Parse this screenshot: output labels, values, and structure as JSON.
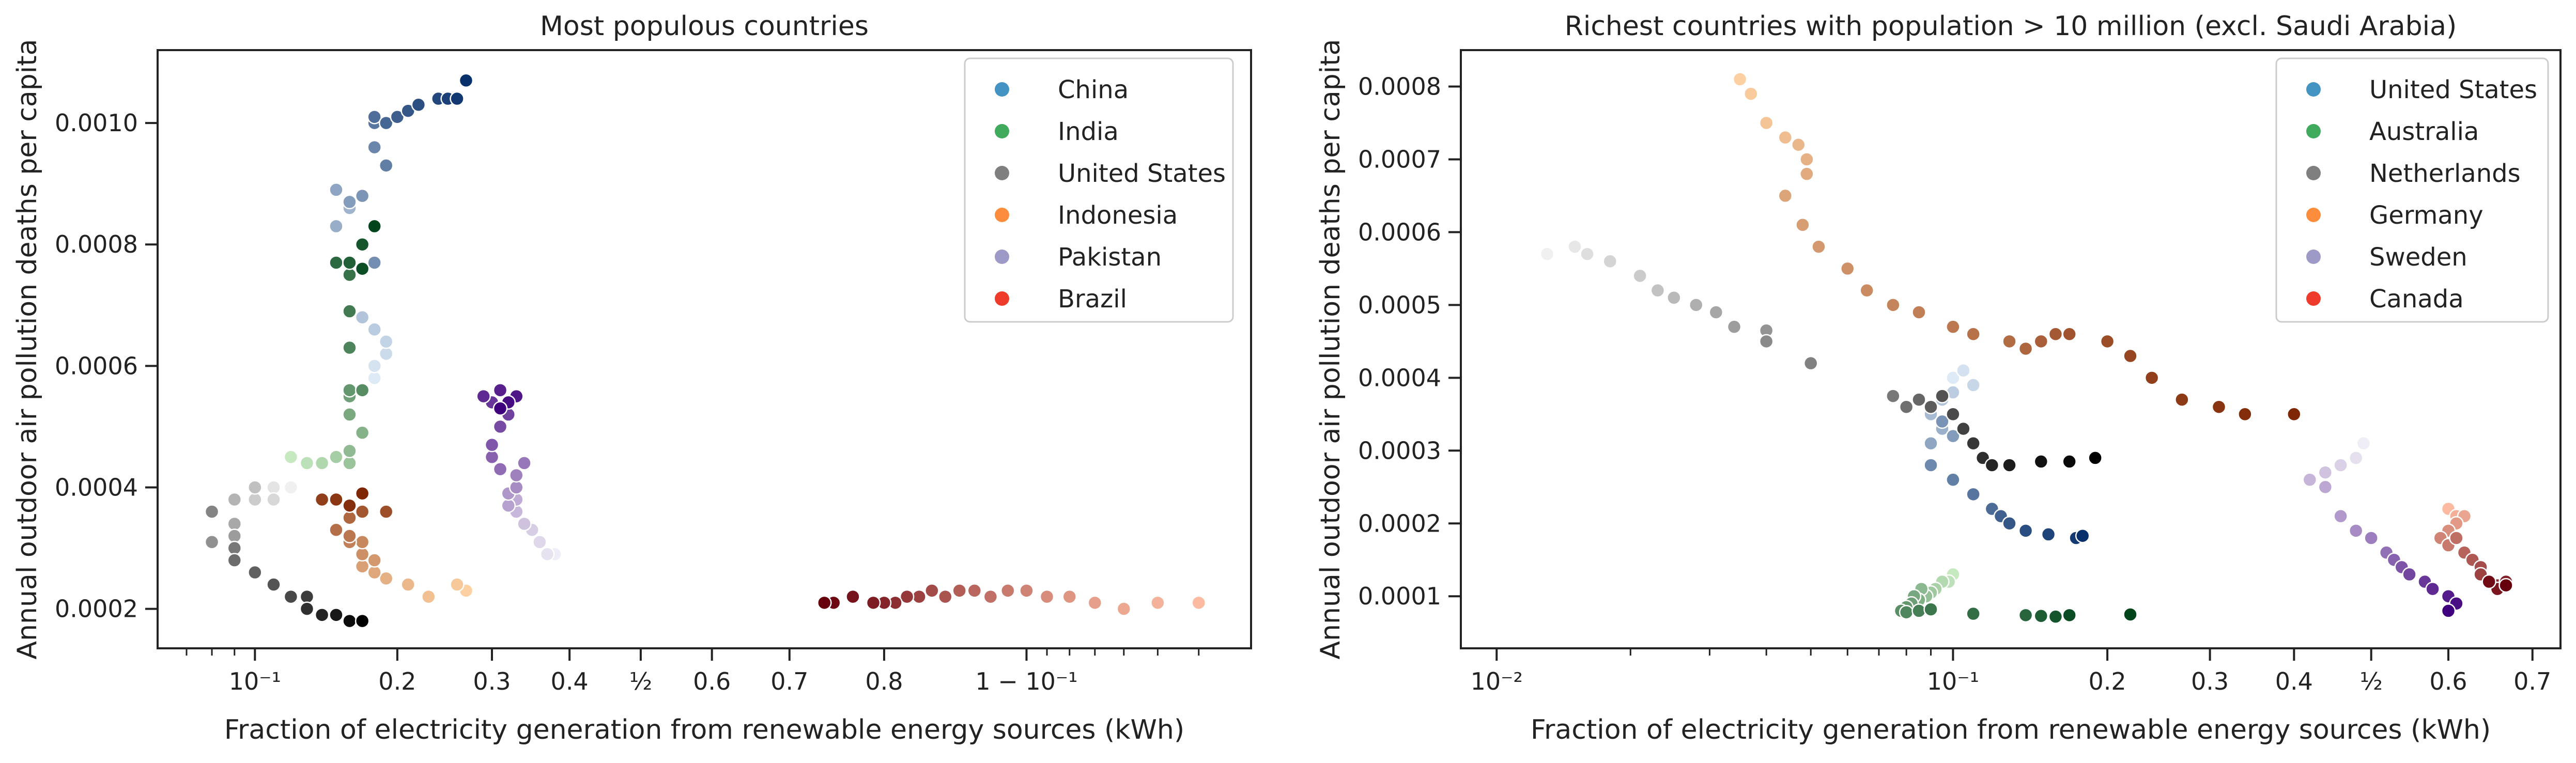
{
  "chart_data": [
    {
      "type": "scatter",
      "title": "Most populous countries",
      "xlabel": "Fraction of electricity generation from renewable energy sources (kWh)",
      "ylabel": "Annual outdoor air pollution deaths per capita",
      "x_scale": "logit",
      "xlim": [
        0.06,
        0.97
      ],
      "ylim": [
        0.000135,
        0.00112
      ],
      "xticks": [
        {
          "value": 0.1,
          "label": "10⁻¹"
        },
        {
          "value": 0.2,
          "label": "0.2"
        },
        {
          "value": 0.3,
          "label": "0.3"
        },
        {
          "value": 0.4,
          "label": "0.4"
        },
        {
          "value": 0.5,
          "label": "½"
        },
        {
          "value": 0.6,
          "label": "0.6"
        },
        {
          "value": 0.7,
          "label": "0.7"
        },
        {
          "value": 0.8,
          "label": "0.8"
        },
        {
          "value": 0.9,
          "label": "1 − 10⁻¹"
        }
      ],
      "yticks": [
        {
          "value": 0.0002,
          "label": "0.0002"
        },
        {
          "value": 0.0004,
          "label": "0.0004"
        },
        {
          "value": 0.0006,
          "label": "0.0006"
        },
        {
          "value": 0.0008,
          "label": "0.0008"
        },
        {
          "value": 0.001,
          "label": "0.0010"
        }
      ],
      "legend_position": "top-right",
      "grid": false,
      "series": [
        {
          "name": "China",
          "color": "#4393c3",
          "colors": [
            "#deebf7",
            "#08306b"
          ],
          "x": [
            0.18,
            0.18,
            0.19,
            0.19,
            0.18,
            0.17,
            0.17,
            0.16,
            0.15,
            0.15,
            0.16,
            0.17,
            0.18,
            0.18,
            0.19,
            0.18,
            0.18,
            0.19,
            0.2,
            0.21,
            0.22,
            0.24,
            0.25,
            0.26,
            0.27
          ],
          "y": [
            0.00058,
            0.0006,
            0.00062,
            0.00064,
            0.00066,
            0.00068,
            0.0008,
            0.00086,
            0.00083,
            0.00089,
            0.00087,
            0.00088,
            0.00077,
            0.00096,
            0.00093,
            0.001,
            0.00101,
            0.001,
            0.00101,
            0.00102,
            0.00103,
            0.00104,
            0.00104,
            0.00104,
            0.00107
          ]
        },
        {
          "name": "India",
          "color": "#41ab5d",
          "colors": [
            "#c7e9c0",
            "#00441b"
          ],
          "x": [
            0.12,
            0.13,
            0.14,
            0.15,
            0.16,
            0.16,
            0.17,
            0.16,
            0.16,
            0.16,
            0.17,
            0.16,
            0.16,
            0.16,
            0.15,
            0.16,
            0.17,
            0.17,
            0.18
          ],
          "y": [
            0.00045,
            0.00044,
            0.00044,
            0.00045,
            0.00044,
            0.00046,
            0.00049,
            0.00052,
            0.00055,
            0.00056,
            0.00056,
            0.00063,
            0.00069,
            0.00075,
            0.00077,
            0.00077,
            0.0008,
            0.00076,
            0.00083
          ]
        },
        {
          "name": "United States",
          "color": "#7f7f7f",
          "colors": [
            "#f0f0f0",
            "#000000"
          ],
          "x": [
            0.12,
            0.11,
            0.11,
            0.1,
            0.1,
            0.09,
            0.09,
            0.09,
            0.08,
            0.08,
            0.09,
            0.09,
            0.1,
            0.11,
            0.12,
            0.13,
            0.13,
            0.14,
            0.15,
            0.16,
            0.17
          ],
          "y": [
            0.0004,
            0.0004,
            0.00038,
            0.00038,
            0.0004,
            0.00038,
            0.00034,
            0.00032,
            0.00031,
            0.00036,
            0.0003,
            0.00028,
            0.00026,
            0.00024,
            0.00022,
            0.00022,
            0.0002,
            0.00019,
            0.00019,
            0.00018,
            0.00018
          ]
        },
        {
          "name": "Indonesia",
          "color": "#fd8d3c",
          "colors": [
            "#fdd0a2",
            "#7f2704"
          ],
          "x": [
            0.27,
            0.26,
            0.23,
            0.21,
            0.19,
            0.18,
            0.17,
            0.18,
            0.17,
            0.17,
            0.16,
            0.16,
            0.15,
            0.16,
            0.16,
            0.17,
            0.19,
            0.15,
            0.14,
            0.15,
            0.16,
            0.17
          ],
          "y": [
            0.00023,
            0.00024,
            0.00022,
            0.00024,
            0.00025,
            0.00026,
            0.00027,
            0.00028,
            0.00029,
            0.00031,
            0.00031,
            0.00032,
            0.00033,
            0.00035,
            0.00037,
            0.00036,
            0.00036,
            0.00038,
            0.00038,
            0.00038,
            0.00037,
            0.00039
          ]
        },
        {
          "name": "Pakistan",
          "color": "#9e9ac8",
          "colors": [
            "#efedf5",
            "#3f007d"
          ],
          "x": [
            0.38,
            0.37,
            0.36,
            0.35,
            0.34,
            0.33,
            0.33,
            0.32,
            0.32,
            0.33,
            0.33,
            0.34,
            0.31,
            0.3,
            0.3,
            0.31,
            0.32,
            0.3,
            0.29,
            0.31,
            0.33,
            0.32,
            0.31
          ],
          "y": [
            0.00029,
            0.00029,
            0.00031,
            0.00033,
            0.00034,
            0.00036,
            0.00038,
            0.00037,
            0.00039,
            0.0004,
            0.00042,
            0.00044,
            0.00043,
            0.00045,
            0.00047,
            0.0005,
            0.00052,
            0.00054,
            0.00055,
            0.00056,
            0.00055,
            0.00054,
            0.00053
          ]
        },
        {
          "name": "Brazil",
          "color": "#ef3b2c",
          "colors": [
            "#fcbba1",
            "#67000d"
          ],
          "x": [
            0.96,
            0.95,
            0.94,
            0.93,
            0.92,
            0.91,
            0.9,
            0.89,
            0.88,
            0.87,
            0.86,
            0.85,
            0.84,
            0.83,
            0.82,
            0.81,
            0.8,
            0.79,
            0.77,
            0.75,
            0.74
          ],
          "y": [
            0.00021,
            0.00021,
            0.0002,
            0.00021,
            0.00022,
            0.00022,
            0.00023,
            0.00023,
            0.00022,
            0.00023,
            0.00023,
            0.00022,
            0.00023,
            0.00022,
            0.00022,
            0.00021,
            0.00021,
            0.00021,
            0.00022,
            0.00021,
            0.00021
          ]
        }
      ]
    },
    {
      "type": "scatter",
      "title": "Richest countries with population > 10 million (excl. Saudi Arabia)",
      "xlabel": "Fraction of electricity generation from renewable energy sources (kWh)",
      "ylabel": "Annual outdoor air pollution deaths per capita",
      "x_scale": "logit",
      "xlim": [
        0.0083,
        0.73
      ],
      "ylim": [
        2.85e-05,
        0.00085
      ],
      "xticks": [
        {
          "value": 0.01,
          "label": "10⁻²"
        },
        {
          "value": 0.1,
          "label": "10⁻¹"
        },
        {
          "value": 0.2,
          "label": "0.2"
        },
        {
          "value": 0.3,
          "label": "0.3"
        },
        {
          "value": 0.4,
          "label": "0.4"
        },
        {
          "value": 0.5,
          "label": "½"
        },
        {
          "value": 0.6,
          "label": "0.6"
        },
        {
          "value": 0.7,
          "label": "0.7"
        }
      ],
      "yticks": [
        {
          "value": 0.0001,
          "label": "0.0001"
        },
        {
          "value": 0.0002,
          "label": "0.0002"
        },
        {
          "value": 0.0003,
          "label": "0.0003"
        },
        {
          "value": 0.0004,
          "label": "0.0004"
        },
        {
          "value": 0.0005,
          "label": "0.0005"
        },
        {
          "value": 0.0006,
          "label": "0.0006"
        },
        {
          "value": 0.0007,
          "label": "0.0007"
        },
        {
          "value": 0.0008,
          "label": "0.0008"
        }
      ],
      "legend_position": "top-right",
      "grid": false,
      "series": [
        {
          "name": "United States",
          "color": "#4393c3",
          "colors": [
            "#deebf7",
            "#08306b"
          ],
          "x": [
            0.1,
            0.105,
            0.11,
            0.1,
            0.095,
            0.09,
            0.095,
            0.09,
            0.1,
            0.095,
            0.09,
            0.1,
            0.11,
            0.12,
            0.125,
            0.13,
            0.14,
            0.155,
            0.175,
            0.18
          ],
          "y": [
            0.0004,
            0.00041,
            0.00039,
            0.00038,
            0.00037,
            0.00035,
            0.00033,
            0.00031,
            0.00032,
            0.00034,
            0.00028,
            0.00026,
            0.00024,
            0.00022,
            0.00021,
            0.0002,
            0.00019,
            0.000185,
            0.00018,
            0.000183
          ]
        },
        {
          "name": "Australia",
          "color": "#41ab5d",
          "colors": [
            "#c7e9c0",
            "#00441b"
          ],
          "x": [
            0.1,
            0.098,
            0.095,
            0.092,
            0.09,
            0.088,
            0.086,
            0.085,
            0.083,
            0.082,
            0.08,
            0.078,
            0.08,
            0.085,
            0.09,
            0.11,
            0.14,
            0.15,
            0.16,
            0.17,
            0.22
          ],
          "y": [
            0.00013,
            0.00012,
            0.00012,
            0.00011,
            0.000105,
            0.0001,
            0.00011,
            9.5e-05,
            0.0001,
            9e-05,
            8.5e-05,
            8e-05,
            7.8e-05,
            8e-05,
            8.2e-05,
            7.6e-05,
            7.4e-05,
            7.3e-05,
            7.2e-05,
            7.4e-05,
            7.5e-05
          ]
        },
        {
          "name": "Netherlands",
          "color": "#7f7f7f",
          "colors": [
            "#f0f0f0",
            "#000000"
          ],
          "x": [
            0.013,
            0.015,
            0.016,
            0.018,
            0.021,
            0.023,
            0.025,
            0.028,
            0.031,
            0.034,
            0.04,
            0.04,
            0.05,
            0.075,
            0.08,
            0.085,
            0.09,
            0.095,
            0.1,
            0.105,
            0.11,
            0.115,
            0.12,
            0.13,
            0.15,
            0.17,
            0.19
          ],
          "y": [
            0.00057,
            0.00058,
            0.00057,
            0.00056,
            0.00054,
            0.00052,
            0.00051,
            0.0005,
            0.00049,
            0.00047,
            0.000465,
            0.00045,
            0.00042,
            0.000375,
            0.00036,
            0.00037,
            0.00036,
            0.000375,
            0.00035,
            0.00033,
            0.00031,
            0.00029,
            0.00028,
            0.00028,
            0.000285,
            0.000285,
            0.00029
          ]
        },
        {
          "name": "Germany",
          "color": "#fd8d3c",
          "colors": [
            "#fdd0a2",
            "#7f2704"
          ],
          "x": [
            0.035,
            0.037,
            0.04,
            0.044,
            0.047,
            0.049,
            0.049,
            0.044,
            0.048,
            0.052,
            0.06,
            0.066,
            0.075,
            0.085,
            0.1,
            0.11,
            0.13,
            0.14,
            0.15,
            0.16,
            0.17,
            0.2,
            0.22,
            0.24,
            0.27,
            0.31,
            0.34,
            0.4
          ],
          "y": [
            0.00081,
            0.00079,
            0.00075,
            0.00073,
            0.00072,
            0.0007,
            0.00068,
            0.00065,
            0.00061,
            0.00058,
            0.00055,
            0.00052,
            0.0005,
            0.00049,
            0.00047,
            0.00046,
            0.00045,
            0.00044,
            0.00045,
            0.00046,
            0.00046,
            0.00045,
            0.00043,
            0.0004,
            0.00037,
            0.00036,
            0.00035,
            0.00035
          ]
        },
        {
          "name": "Sweden",
          "color": "#9e9ac8",
          "colors": [
            "#efedf5",
            "#3f007d"
          ],
          "x": [
            0.49,
            0.48,
            0.46,
            0.44,
            0.42,
            0.44,
            0.46,
            0.48,
            0.5,
            0.52,
            0.53,
            0.54,
            0.55,
            0.57,
            0.58,
            0.6,
            0.61,
            0.6
          ],
          "y": [
            0.00031,
            0.00029,
            0.00028,
            0.00027,
            0.00026,
            0.00025,
            0.00021,
            0.00019,
            0.00018,
            0.00016,
            0.00015,
            0.00014,
            0.00013,
            0.00012,
            0.00011,
            0.0001,
            9e-05,
            8e-05
          ]
        },
        {
          "name": "Canada",
          "color": "#ef3b2c",
          "colors": [
            "#fcbba1",
            "#67000d"
          ],
          "x": [
            0.6,
            0.61,
            0.62,
            0.61,
            0.6,
            0.59,
            0.6,
            0.61,
            0.62,
            0.63,
            0.64,
            0.64,
            0.65,
            0.66,
            0.67,
            0.66,
            0.65,
            0.67
          ],
          "y": [
            0.00022,
            0.00021,
            0.00021,
            0.0002,
            0.00019,
            0.00018,
            0.00017,
            0.00018,
            0.00016,
            0.00015,
            0.00014,
            0.00013,
            0.00012,
            0.000115,
            0.00012,
            0.00011,
            0.00012,
            0.000115
          ]
        }
      ]
    }
  ]
}
